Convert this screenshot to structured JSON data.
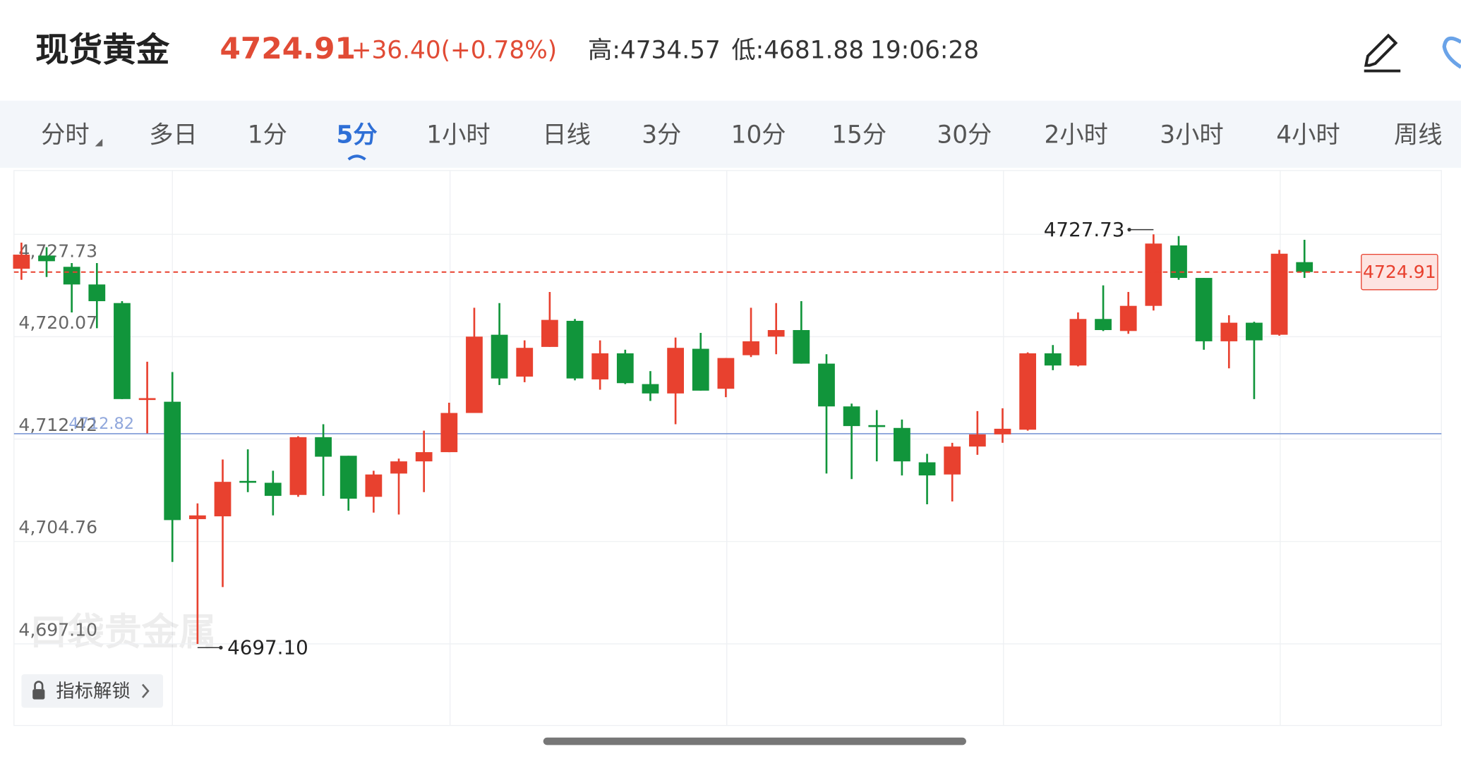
{
  "header": {
    "title": "现货黄金",
    "price": "4724.91",
    "change": "+36.40(+0.78%)",
    "high": "高:4734.57",
    "low": "低:4681.88",
    "time": "19:06:28"
  },
  "tabs": [
    "分时",
    "多日",
    "1分",
    "5分",
    "1小时",
    "日线",
    "3分",
    "10分",
    "15分",
    "30分",
    "2小时",
    "3小时",
    "4小时",
    "周线"
  ],
  "active_tab": "5分",
  "watermark": "口袋贵金属",
  "unlock_button": "指标解锁",
  "chart_data": {
    "type": "candlestick",
    "open": [
      4725.16,
      4726.14,
      4725.3,
      4723.98,
      4722.59,
      4715.34,
      4715.21,
      4706.43,
      4706.64,
      4709.29,
      4709.15,
      4708.24,
      4712.56,
      4711.17,
      4708.1,
      4709.84,
      4710.75,
      4711.44,
      4714.37,
      4720.22,
      4717.09,
      4719.31,
      4721.26,
      4716.88,
      4718.83,
      4716.53,
      4715.83,
      4719.17,
      4716.18,
      4718.69,
      4720.08,
      4720.57,
      4718.06,
      4714.86,
      4713.46,
      4713.25,
      4710.68,
      4709.77,
      4711.86,
      4712.77,
      4713.12,
      4718.83,
      4717.92,
      4721.4,
      4720.5,
      4722.38,
      4726.9,
      4724.47,
      4719.73,
      4721.12,
      4720.22,
      4725.65
    ],
    "high": [
      4727.11,
      4726.77,
      4725.58,
      4725.58,
      4722.73,
      4718.2,
      4717.43,
      4707.61,
      4710.89,
      4711.65,
      4710.05,
      4712.63,
      4713.53,
      4711.17,
      4710.05,
      4710.96,
      4713.05,
      4715.14,
      4722.24,
      4722.59,
      4719.8,
      4723.42,
      4721.4,
      4719.8,
      4719.1,
      4717.5,
      4720.01,
      4720.36,
      4718.48,
      4722.24,
      4722.59,
      4722.73,
      4718.76,
      4715.07,
      4714.58,
      4713.88,
      4711.31,
      4712.14,
      4714.51,
      4714.72,
      4718.9,
      4719.45,
      4721.89,
      4723.91,
      4723.42,
      4727.73,
      4727.6,
      4724.47,
      4721.68,
      4721.19,
      4726.56,
      4727.32
    ],
    "low": [
      4724.33,
      4724.54,
      4721.89,
      4720.71,
      4715.41,
      4712.84,
      4703.23,
      4697.1,
      4701.35,
      4708.45,
      4706.71,
      4708.1,
      4708.17,
      4707.06,
      4706.92,
      4706.78,
      4708.45,
      4711.44,
      4714.37,
      4716.46,
      4716.67,
      4719.31,
      4716.81,
      4716.11,
      4716.53,
      4715.27,
      4713.53,
      4716.04,
      4715.55,
      4718.55,
      4718.76,
      4718.06,
      4709.84,
      4709.43,
      4710.75,
      4709.7,
      4707.54,
      4707.75,
      4711.24,
      4712.14,
      4713.05,
      4717.57,
      4717.85,
      4720.5,
      4720.29,
      4722.03,
      4724.33,
      4719.1,
      4717.71,
      4715.41,
      4720.15,
      4724.47
    ],
    "close": [
      4726.21,
      4725.72,
      4723.98,
      4722.73,
      4715.41,
      4715.48,
      4706.36,
      4706.71,
      4709.22,
      4709.15,
      4708.17,
      4712.56,
      4711.1,
      4707.96,
      4709.77,
      4710.75,
      4711.44,
      4714.37,
      4720.08,
      4716.95,
      4719.24,
      4721.33,
      4716.95,
      4718.83,
      4716.6,
      4715.83,
      4719.24,
      4716.04,
      4718.48,
      4719.73,
      4720.57,
      4718.06,
      4714.86,
      4713.39,
      4713.32,
      4710.75,
      4709.7,
      4711.86,
      4712.77,
      4713.19,
      4718.83,
      4717.92,
      4721.4,
      4720.57,
      4722.38,
      4727.04,
      4724.47,
      4719.73,
      4721.12,
      4719.8,
      4726.28,
      4724.91
    ],
    "up_color": "#e8412f",
    "down_color": "#11953b",
    "ylim": [
      4691.0,
      4732.5
    ],
    "yticks": [
      {
        "value": 4727.73,
        "label": "4,727.73"
      },
      {
        "value": 4720.07,
        "label": "4,720.07"
      },
      {
        "value": 4712.42,
        "label": "4,712.42"
      },
      {
        "value": 4704.76,
        "label": "4,704.76"
      },
      {
        "value": 4697.1,
        "label": "4,697.10"
      }
    ],
    "grid": true,
    "reference_line": 4712.82,
    "last_price": 4724.91,
    "max_marker": 4727.73,
    "min_marker": {
      "value": 4697.1,
      "label": "4697.10"
    }
  }
}
